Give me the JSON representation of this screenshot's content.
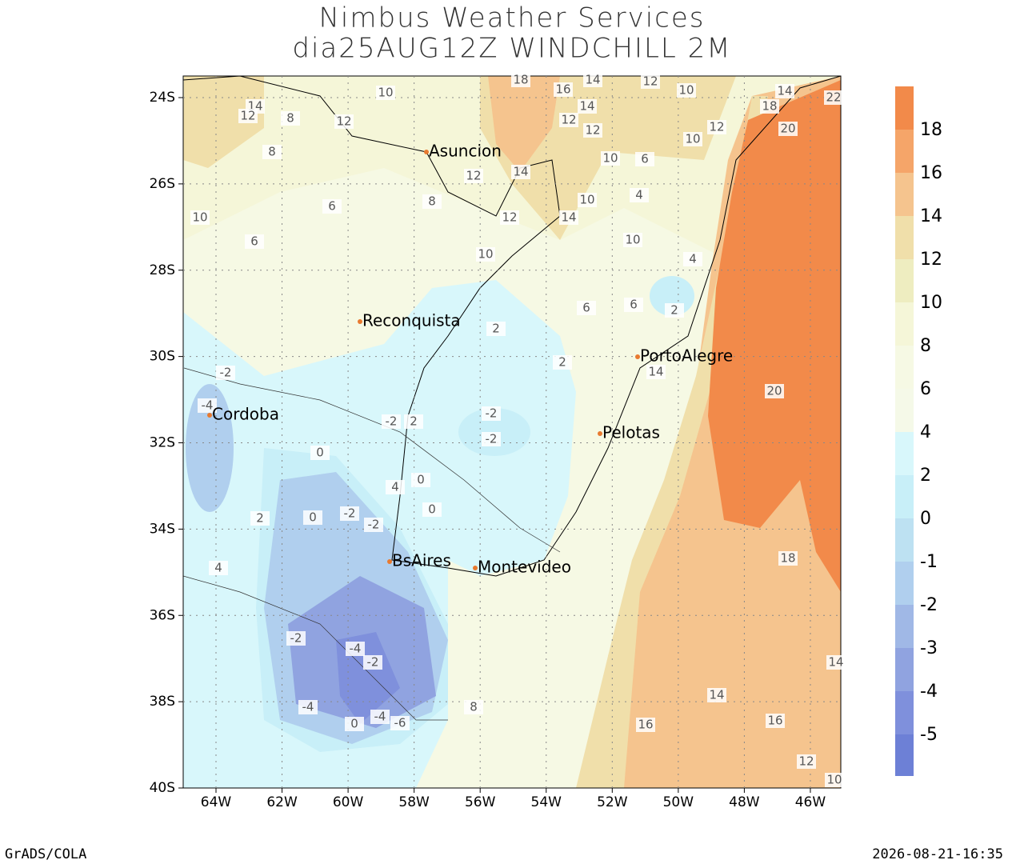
{
  "header": {
    "title": "Nimbus Weather Services",
    "subtitle": "dia25AUG12Z WINDCHILL 2M"
  },
  "lat_ticks": [
    "24S",
    "26S",
    "28S",
    "30S",
    "32S",
    "34S",
    "36S",
    "38S",
    "40S"
  ],
  "lon_ticks": [
    "64W",
    "62W",
    "60W",
    "58W",
    "56W",
    "54W",
    "52W",
    "50W",
    "48W",
    "46W"
  ],
  "cities": [
    "Asuncion",
    "Reconquista",
    "Cordoba",
    "BsAires",
    "Montevideo",
    "PortoAlegre",
    "Pelotas"
  ],
  "contour_labels": [
    10,
    14,
    12,
    12,
    8,
    18,
    16,
    14,
    12,
    12,
    12,
    10,
    12,
    14,
    14,
    12,
    10,
    10,
    6,
    8,
    4,
    10,
    8,
    6,
    6,
    12,
    14,
    10,
    4,
    2,
    6,
    6,
    20,
    20,
    18,
    18,
    14,
    16,
    16,
    14,
    14,
    12,
    10,
    14,
    2,
    2,
    2,
    0,
    -2,
    -2,
    -2,
    -4,
    0,
    0,
    0,
    -2,
    -2,
    -2,
    -4,
    -4,
    -2,
    0,
    -4,
    -6,
    -2,
    2,
    4,
    4,
    8,
    10,
    10,
    22
  ],
  "colorbar": {
    "labels": [
      18,
      16,
      14,
      12,
      10,
      8,
      6,
      4,
      2,
      0,
      -1,
      -2,
      -3,
      -4,
      -5
    ],
    "colors": [
      "#f28a4a",
      "#f5a569",
      "#f5c48e",
      "#f0dfaa",
      "#eeedc0",
      "#f5f6d8",
      "#f6f9e4",
      "#f5f9e8",
      "#d8f7fb",
      "#c8eff8",
      "#bde1f2",
      "#b0cfee",
      "#a0b8e6",
      "#90a3e0",
      "#7f90dc",
      "#6d80d6"
    ]
  },
  "footer": {
    "left": "GrADS/COLA",
    "right": "2026-08-21-16:35"
  }
}
